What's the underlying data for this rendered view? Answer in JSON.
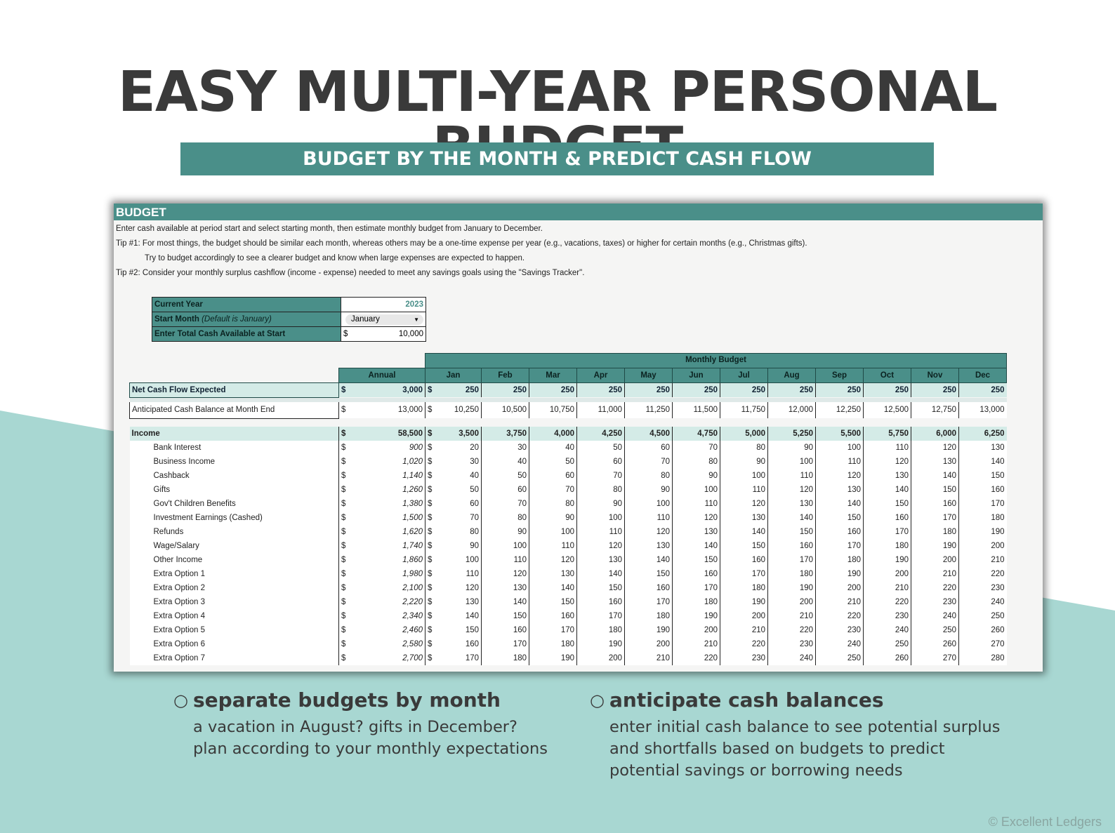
{
  "colors": {
    "accent": "#4a8f89",
    "light_row": "#d4ebe7",
    "background_shape": "#a8d7d2",
    "headline": "#3a3a3a"
  },
  "headline": "EASY MULTI-YEAR PERSONAL BUDGET",
  "banner": "BUDGET BY THE MONTH & PREDICT CASH FLOW",
  "sheet": {
    "title": "BUDGET",
    "instructions": [
      "Enter cash available at period start and select starting month, then estimate monthly budget from January to December.",
      "Tip #1: For most things, the budget should be similar each month, whereas others may be a one-time expense per year (e.g., vacations, taxes) or higher for certain months (e.g., Christmas gifts).",
      "Try to budget accordingly to see a clearer budget and know when large expenses are expected to happen.",
      "Tip #2: Consider your monthly surplus cashflow (income - expense) needed to meet any savings goals using the \"Savings Tracker\"."
    ],
    "controls": {
      "current_year_label": "Current Year",
      "current_year_value": "2023",
      "start_month_label": "Start Month",
      "start_month_note": "(Default is January)",
      "start_month_value": "January",
      "cash_label": "Enter Total Cash Available at Start",
      "cash_currency": "$",
      "cash_value": "10,000"
    },
    "table": {
      "monthly_budget_header": "Monthly Budget",
      "annual_header": "Annual",
      "currency": "$",
      "months": [
        "Jan",
        "Feb",
        "Mar",
        "Apr",
        "May",
        "Jun",
        "Jul",
        "Aug",
        "Sep",
        "Oct",
        "Nov",
        "Dec"
      ],
      "net": {
        "label": "Net Cash Flow Expected",
        "annual": "3,000",
        "values": [
          "250",
          "250",
          "250",
          "250",
          "250",
          "250",
          "250",
          "250",
          "250",
          "250",
          "250",
          "250"
        ]
      },
      "cash_balance": {
        "label": "Anticipated Cash Balance at Month End",
        "annual": "13,000",
        "values": [
          "10,250",
          "10,500",
          "10,750",
          "11,000",
          "11,250",
          "11,500",
          "11,750",
          "12,000",
          "12,250",
          "12,500",
          "12,750",
          "13,000"
        ]
      },
      "income": {
        "label": "Income",
        "annual": "58,500",
        "values": [
          "3,500",
          "3,750",
          "4,000",
          "4,250",
          "4,500",
          "4,750",
          "5,000",
          "5,250",
          "5,500",
          "5,750",
          "6,000",
          "6,250"
        ]
      },
      "items": [
        {
          "label": "Bank Interest",
          "annual": "900",
          "values": [
            "20",
            "30",
            "40",
            "50",
            "60",
            "70",
            "80",
            "90",
            "100",
            "110",
            "120",
            "130"
          ]
        },
        {
          "label": "Business Income",
          "annual": "1,020",
          "values": [
            "30",
            "40",
            "50",
            "60",
            "70",
            "80",
            "90",
            "100",
            "110",
            "120",
            "130",
            "140"
          ]
        },
        {
          "label": "Cashback",
          "annual": "1,140",
          "values": [
            "40",
            "50",
            "60",
            "70",
            "80",
            "90",
            "100",
            "110",
            "120",
            "130",
            "140",
            "150"
          ]
        },
        {
          "label": "Gifts",
          "annual": "1,260",
          "values": [
            "50",
            "60",
            "70",
            "80",
            "90",
            "100",
            "110",
            "120",
            "130",
            "140",
            "150",
            "160"
          ]
        },
        {
          "label": "Gov't Children Benefits",
          "annual": "1,380",
          "values": [
            "60",
            "70",
            "80",
            "90",
            "100",
            "110",
            "120",
            "130",
            "140",
            "150",
            "160",
            "170"
          ]
        },
        {
          "label": "Investment Earnings (Cashed)",
          "annual": "1,500",
          "values": [
            "70",
            "80",
            "90",
            "100",
            "110",
            "120",
            "130",
            "140",
            "150",
            "160",
            "170",
            "180"
          ]
        },
        {
          "label": "Refunds",
          "annual": "1,620",
          "values": [
            "80",
            "90",
            "100",
            "110",
            "120",
            "130",
            "140",
            "150",
            "160",
            "170",
            "180",
            "190"
          ]
        },
        {
          "label": "Wage/Salary",
          "annual": "1,740",
          "values": [
            "90",
            "100",
            "110",
            "120",
            "130",
            "140",
            "150",
            "160",
            "170",
            "180",
            "190",
            "200"
          ]
        },
        {
          "label": "Other Income",
          "annual": "1,860",
          "values": [
            "100",
            "110",
            "120",
            "130",
            "140",
            "150",
            "160",
            "170",
            "180",
            "190",
            "200",
            "210"
          ]
        },
        {
          "label": "Extra Option 1",
          "annual": "1,980",
          "values": [
            "110",
            "120",
            "130",
            "140",
            "150",
            "160",
            "170",
            "180",
            "190",
            "200",
            "210",
            "220"
          ]
        },
        {
          "label": "Extra Option 2",
          "annual": "2,100",
          "values": [
            "120",
            "130",
            "140",
            "150",
            "160",
            "170",
            "180",
            "190",
            "200",
            "210",
            "220",
            "230"
          ]
        },
        {
          "label": "Extra Option 3",
          "annual": "2,220",
          "values": [
            "130",
            "140",
            "150",
            "160",
            "170",
            "180",
            "190",
            "200",
            "210",
            "220",
            "230",
            "240"
          ]
        },
        {
          "label": "Extra Option 4",
          "annual": "2,340",
          "values": [
            "140",
            "150",
            "160",
            "170",
            "180",
            "190",
            "200",
            "210",
            "220",
            "230",
            "240",
            "250"
          ]
        },
        {
          "label": "Extra Option 5",
          "annual": "2,460",
          "values": [
            "150",
            "160",
            "170",
            "180",
            "190",
            "200",
            "210",
            "220",
            "230",
            "240",
            "250",
            "260"
          ]
        },
        {
          "label": "Extra Option 6",
          "annual": "2,580",
          "values": [
            "160",
            "170",
            "180",
            "190",
            "200",
            "210",
            "220",
            "230",
            "240",
            "250",
            "260",
            "270"
          ]
        },
        {
          "label": "Extra Option 7",
          "annual": "2,700",
          "values": [
            "170",
            "180",
            "190",
            "200",
            "210",
            "220",
            "230",
            "240",
            "250",
            "260",
            "270",
            "280"
          ]
        }
      ]
    }
  },
  "features": [
    {
      "heading": "separate budgets by month",
      "lines": [
        "a vacation in August? gifts in December?",
        "plan according to your monthly expectations"
      ]
    },
    {
      "heading": "anticipate cash balances",
      "lines": [
        "enter initial cash balance to see potential surplus",
        "and shortfalls based on budgets to predict",
        "potential savings or borrowing needs"
      ]
    }
  ],
  "copyright": "© Excellent Ledgers"
}
